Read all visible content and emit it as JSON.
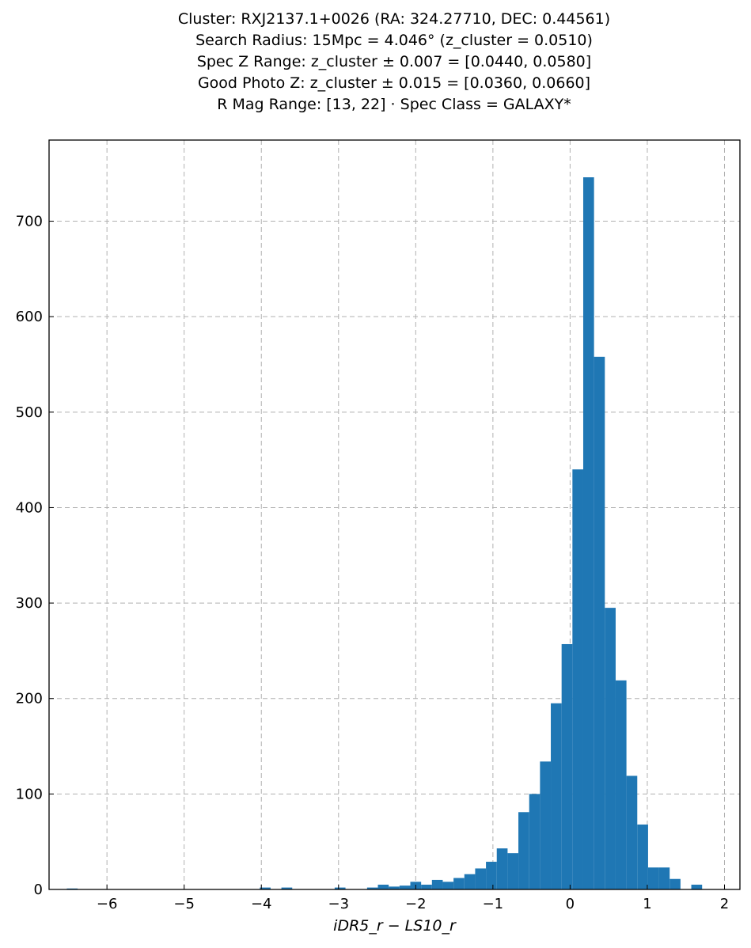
{
  "chart_data": {
    "type": "bar",
    "subtype": "histogram",
    "title_lines": [
      "Cluster: RXJ2137.1+0026 (RA: 324.27710, DEC: 0.44561)",
      "Search Radius: 15Mpc = 4.046° (z_cluster = 0.0510)",
      "Spec Z Range: z_cluster ± 0.007 = [0.0440, 0.0580]",
      "Good Photo Z: z_cluster ± 0.015 = [0.0360, 0.0660]",
      "R Mag Range: [13, 22] · Spec Class = GALAXY*"
    ],
    "xlabel": "iDR5_r − LS10_r",
    "ylabel": "",
    "xlim": [
      -6.75,
      2.2
    ],
    "ylim": [
      0,
      785
    ],
    "xticks": [
      -6,
      -5,
      -4,
      -3,
      -2,
      -1,
      0,
      1,
      2
    ],
    "xtick_labels": [
      "−6",
      "−5",
      "−4",
      "−3",
      "−2",
      "−1",
      "0",
      "1",
      "2"
    ],
    "yticks": [
      0,
      100,
      200,
      300,
      400,
      500,
      600,
      700
    ],
    "ytick_labels": [
      "0",
      "100",
      "200",
      "300",
      "400",
      "500",
      "600",
      "700"
    ],
    "grid": true,
    "bar_color": "#1f77b4",
    "bins": [
      {
        "x0": -6.52,
        "x1": -6.38,
        "count": 1
      },
      {
        "x0": -4.02,
        "x1": -3.88,
        "count": 2
      },
      {
        "x0": -3.74,
        "x1": -3.6,
        "count": 2
      },
      {
        "x0": -3.05,
        "x1": -2.91,
        "count": 2
      },
      {
        "x0": -2.63,
        "x1": -2.49,
        "count": 2
      },
      {
        "x0": -2.49,
        "x1": -2.35,
        "count": 5
      },
      {
        "x0": -2.35,
        "x1": -2.21,
        "count": 3
      },
      {
        "x0": -2.21,
        "x1": -2.07,
        "count": 4
      },
      {
        "x0": -2.07,
        "x1": -1.93,
        "count": 8
      },
      {
        "x0": -1.93,
        "x1": -1.79,
        "count": 5
      },
      {
        "x0": -1.79,
        "x1": -1.65,
        "count": 10
      },
      {
        "x0": -1.65,
        "x1": -1.51,
        "count": 8
      },
      {
        "x0": -1.51,
        "x1": -1.37,
        "count": 12
      },
      {
        "x0": -1.37,
        "x1": -1.23,
        "count": 16
      },
      {
        "x0": -1.23,
        "x1": -1.09,
        "count": 22
      },
      {
        "x0": -1.09,
        "x1": -0.95,
        "count": 29
      },
      {
        "x0": -0.95,
        "x1": -0.81,
        "count": 43
      },
      {
        "x0": -0.81,
        "x1": -0.67,
        "count": 38
      },
      {
        "x0": -0.67,
        "x1": -0.53,
        "count": 81
      },
      {
        "x0": -0.53,
        "x1": -0.39,
        "count": 100
      },
      {
        "x0": -0.39,
        "x1": -0.25,
        "count": 134
      },
      {
        "x0": -0.25,
        "x1": -0.11,
        "count": 195
      },
      {
        "x0": -0.11,
        "x1": 0.03,
        "count": 257
      },
      {
        "x0": 0.03,
        "x1": 0.17,
        "count": 440
      },
      {
        "x0": 0.17,
        "x1": 0.31,
        "count": 746
      },
      {
        "x0": 0.31,
        "x1": 0.45,
        "count": 558
      },
      {
        "x0": 0.45,
        "x1": 0.59,
        "count": 295
      },
      {
        "x0": 0.59,
        "x1": 0.73,
        "count": 219
      },
      {
        "x0": 0.73,
        "x1": 0.87,
        "count": 119
      },
      {
        "x0": 0.87,
        "x1": 1.01,
        "count": 68
      },
      {
        "x0": 1.01,
        "x1": 1.15,
        "count": 23
      },
      {
        "x0": 1.15,
        "x1": 1.29,
        "count": 23
      },
      {
        "x0": 1.29,
        "x1": 1.43,
        "count": 11
      },
      {
        "x0": 1.57,
        "x1": 1.71,
        "count": 5
      }
    ]
  }
}
